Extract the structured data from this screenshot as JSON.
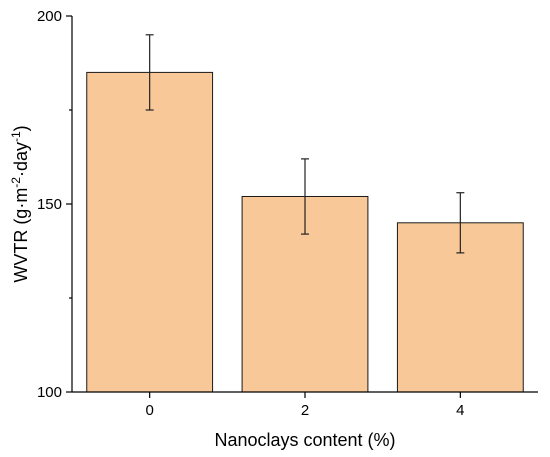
{
  "chart_data": {
    "type": "bar",
    "categories": [
      "0",
      "2",
      "4"
    ],
    "values": [
      185,
      152,
      145
    ],
    "errors": [
      10,
      10,
      8
    ],
    "xlabel": "Nanoclays content (%)",
    "ylabel_parts": {
      "base": "WVTR (g·m",
      "sup1": "-2",
      "mid": "·day",
      "sup2": "-1",
      "end": ")"
    },
    "ylim": [
      100,
      200
    ],
    "yticks": [
      100,
      150,
      200
    ],
    "grid": false,
    "bar_color": "#F8C898",
    "edge_color": "#1a1a1a"
  }
}
